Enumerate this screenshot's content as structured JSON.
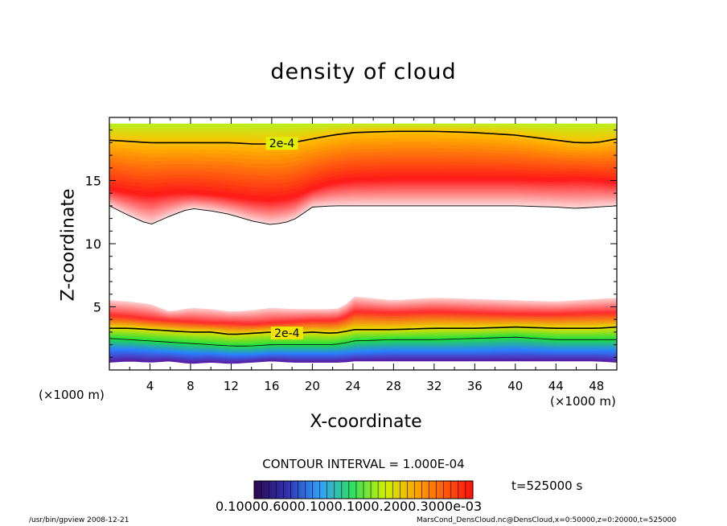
{
  "figure": {
    "footer_left": "/usr/bin/gpview  2008-12-21",
    "footer_right": "MarsCond_DensCloud.nc@DensCloud,x=0:50000,z=0:20000,t=525000",
    "contour_interval": "CONTOUR INTERVAL = 1.000E-04",
    "time_label": "t=525000 s",
    "colorbar_labels": "0.10000.6000.1000.1000.2000.3000e-03",
    "x_unit_left": "(×1000 m)",
    "x_unit_right": "(×1000 m)",
    "colors": {
      "low": "#4a1a9c",
      "mid_blue": "#2aa0ff",
      "green": "#33dd33",
      "yellow": "#ffe000",
      "orange": "#ff8800",
      "red": "#ff2020",
      "high": "#ff0000"
    }
  },
  "chart_data": {
    "type": "heatmap",
    "title": "density of cloud",
    "xlabel": "X-coordinate",
    "ylabel": "Z-coordinate",
    "xlim": [
      0,
      50
    ],
    "ylim": [
      0,
      20
    ],
    "x_ticks": [
      "4",
      "8",
      "12",
      "16",
      "20",
      "24",
      "28",
      "32",
      "36",
      "40",
      "44",
      "48"
    ],
    "y_ticks": [
      "5",
      "10",
      "15"
    ],
    "contour_labels": [
      "2e-4",
      "2e-4"
    ],
    "upper_band": {
      "x": [
        0,
        2,
        4,
        6,
        8,
        10,
        12,
        14,
        16,
        18,
        20,
        22,
        24,
        28,
        32,
        36,
        40,
        44,
        46,
        48,
        50
      ],
      "z_top": [
        19.5,
        19.5,
        19.5,
        19.5,
        19.5,
        19.5,
        19.5,
        19.5,
        19.5,
        19.5,
        19.5,
        19.5,
        19.5,
        19.5,
        19.5,
        19.5,
        19.5,
        19.5,
        19.5,
        19.5,
        19.5
      ],
      "z_2e4": [
        18.2,
        18.1,
        18.0,
        18.0,
        18.0,
        18.0,
        18.0,
        17.9,
        17.9,
        18.0,
        18.3,
        18.6,
        18.8,
        18.9,
        18.9,
        18.8,
        18.6,
        18.2,
        18.0,
        18.0,
        18.3
      ],
      "z_peak": [
        14.3,
        14.0,
        13.8,
        14.0,
        14.0,
        13.9,
        13.7,
        13.5,
        13.4,
        13.6,
        14.3,
        14.8,
        15.0,
        15.1,
        15.1,
        15.1,
        15.1,
        15.0,
        15.1,
        15.0,
        14.8
      ],
      "z_bottom": [
        13.0,
        12.2,
        11.5,
        12.2,
        12.8,
        12.6,
        12.3,
        11.8,
        11.5,
        11.8,
        12.9,
        13.0,
        13.0,
        13.0,
        13.0,
        13.0,
        13.0,
        12.9,
        12.8,
        12.9,
        13.0
      ]
    },
    "lower_band": {
      "x": [
        0,
        2,
        4,
        6,
        8,
        10,
        12,
        14,
        16,
        18,
        20,
        22,
        23,
        24,
        28,
        32,
        36,
        40,
        44,
        48,
        50
      ],
      "z_top": [
        5.5,
        5.4,
        5.2,
        4.6,
        4.9,
        4.8,
        4.6,
        4.7,
        4.9,
        4.8,
        4.8,
        4.8,
        4.9,
        5.8,
        5.5,
        5.7,
        5.6,
        5.5,
        5.4,
        5.6,
        5.7
      ],
      "z_peak": [
        4.3,
        4.2,
        4.0,
        3.9,
        3.8,
        3.7,
        3.7,
        3.6,
        3.7,
        3.8,
        3.9,
        3.9,
        4.0,
        4.6,
        4.5,
        4.6,
        4.5,
        4.4,
        4.4,
        4.5,
        4.5
      ],
      "z_2e4": [
        3.3,
        3.3,
        3.2,
        3.1,
        3.0,
        3.0,
        2.8,
        2.9,
        3.0,
        2.9,
        3.0,
        2.9,
        3.0,
        3.2,
        3.2,
        3.3,
        3.3,
        3.4,
        3.3,
        3.3,
        3.4
      ],
      "z_green": [
        2.5,
        2.4,
        2.3,
        2.2,
        2.1,
        2.0,
        1.9,
        1.9,
        2.0,
        2.0,
        2.0,
        2.0,
        2.1,
        2.3,
        2.4,
        2.4,
        2.5,
        2.6,
        2.4,
        2.4,
        2.4
      ],
      "z_blue": [
        1.6,
        1.6,
        1.5,
        1.4,
        1.3,
        1.3,
        1.2,
        1.2,
        1.3,
        1.3,
        1.3,
        1.3,
        1.3,
        1.4,
        1.5,
        1.5,
        1.5,
        1.6,
        1.5,
        1.5,
        1.5
      ],
      "z_bottom": [
        0.6,
        0.7,
        0.6,
        0.7,
        0.5,
        0.6,
        0.5,
        0.6,
        0.7,
        0.6,
        0.6,
        0.6,
        0.6,
        0.7,
        0.7,
        0.7,
        0.7,
        0.7,
        0.7,
        0.7,
        0.6
      ]
    }
  }
}
